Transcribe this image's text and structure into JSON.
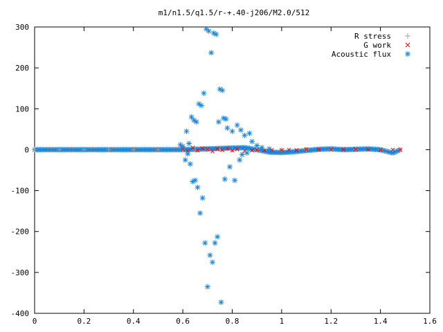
{
  "chart_data": {
    "type": "scatter",
    "title": "m1/n1.5/q1.5/r-+.40-j206/M2.0/512",
    "xlabel": "",
    "ylabel": "",
    "xlim": [
      0,
      1.6
    ],
    "ylim": [
      -400,
      300
    ],
    "x_ticks": [
      0,
      0.2,
      0.4,
      0.6,
      0.8,
      1,
      1.2,
      1.4,
      1.6
    ],
    "x_tick_labels": [
      "0",
      "0.2",
      "0.4",
      "0.6",
      "0.8",
      "1",
      "1.2",
      "1.4",
      "1.6"
    ],
    "y_ticks": [
      -400,
      -300,
      -200,
      -100,
      0,
      100,
      200,
      300
    ],
    "y_tick_labels": [
      "-400",
      "-300",
      "-200",
      "-100",
      "0",
      "100",
      "200",
      "300"
    ],
    "grid": false,
    "legend_position": "top-right",
    "series": [
      {
        "name": "R stress",
        "marker": "plus",
        "color": "#a0a0a0",
        "x": [
          0.0,
          0.1,
          0.2,
          0.3,
          0.4,
          0.5,
          0.6,
          0.65,
          0.7,
          0.75,
          0.8,
          0.9,
          1.0,
          1.1,
          1.2,
          1.3,
          1.4,
          1.48
        ],
        "y": [
          0,
          0,
          0,
          0,
          0,
          0,
          0,
          0,
          0,
          0,
          0,
          0,
          0,
          0,
          0,
          0,
          0,
          0
        ]
      },
      {
        "name": "G work",
        "marker": "cross",
        "color": "#ff0000",
        "x": [
          0.6,
          0.62,
          0.64,
          0.66,
          0.68,
          0.7,
          0.72,
          0.74,
          0.76,
          0.78,
          0.8,
          0.82,
          0.85,
          0.88,
          0.9,
          0.93,
          0.96,
          1.0,
          1.03,
          1.06,
          1.1,
          1.15,
          1.2,
          1.25,
          1.3,
          1.35,
          1.4,
          1.45,
          1.48
        ],
        "y": [
          2,
          -3,
          5,
          -2,
          3,
          1,
          -4,
          2,
          -1,
          3,
          -2,
          1,
          -3,
          -2,
          -1,
          -2,
          -1,
          -1,
          0,
          -1,
          1,
          0,
          1,
          1,
          1,
          0,
          -1,
          0,
          0
        ]
      },
      {
        "name": "Acoustic flux",
        "marker": "star",
        "color": "#1c86d8",
        "x": [
          0.59,
          0.6,
          0.61,
          0.615,
          0.62,
          0.625,
          0.63,
          0.635,
          0.64,
          0.645,
          0.65,
          0.655,
          0.66,
          0.665,
          0.67,
          0.675,
          0.68,
          0.685,
          0.69,
          0.695,
          0.7,
          0.705,
          0.71,
          0.715,
          0.72,
          0.725,
          0.73,
          0.735,
          0.74,
          0.745,
          0.75,
          0.755,
          0.76,
          0.765,
          0.77,
          0.775,
          0.78,
          0.79,
          0.8,
          0.81,
          0.82,
          0.83,
          0.835,
          0.84,
          0.85,
          0.86,
          0.87,
          0.88,
          0.9,
          0.92,
          0.95
        ],
        "y": [
          12,
          8,
          -25,
          45,
          -10,
          15,
          -35,
          80,
          -78,
          72,
          -75,
          68,
          -92,
          112,
          -155,
          108,
          -118,
          138,
          -228,
          295,
          -335,
          290,
          -258,
          237,
          -275,
          285,
          -228,
          282,
          -213,
          68,
          148,
          -373,
          145,
          77,
          -72,
          75,
          53,
          -42,
          45,
          -75,
          60,
          -25,
          48,
          -12,
          35,
          -8,
          40,
          20,
          10,
          5,
          2
        ]
      }
    ],
    "band": {
      "x": [
        0.0,
        0.55,
        0.6,
        0.85,
        0.9,
        0.95,
        1.0,
        1.05,
        1.1,
        1.15,
        1.2,
        1.25,
        1.3,
        1.35,
        1.4,
        1.45,
        1.48
      ],
      "y": [
        0,
        0,
        0,
        5,
        0,
        -6,
        -7,
        -5,
        -2,
        1,
        2,
        0,
        1,
        2,
        0,
        -8,
        0
      ]
    }
  }
}
